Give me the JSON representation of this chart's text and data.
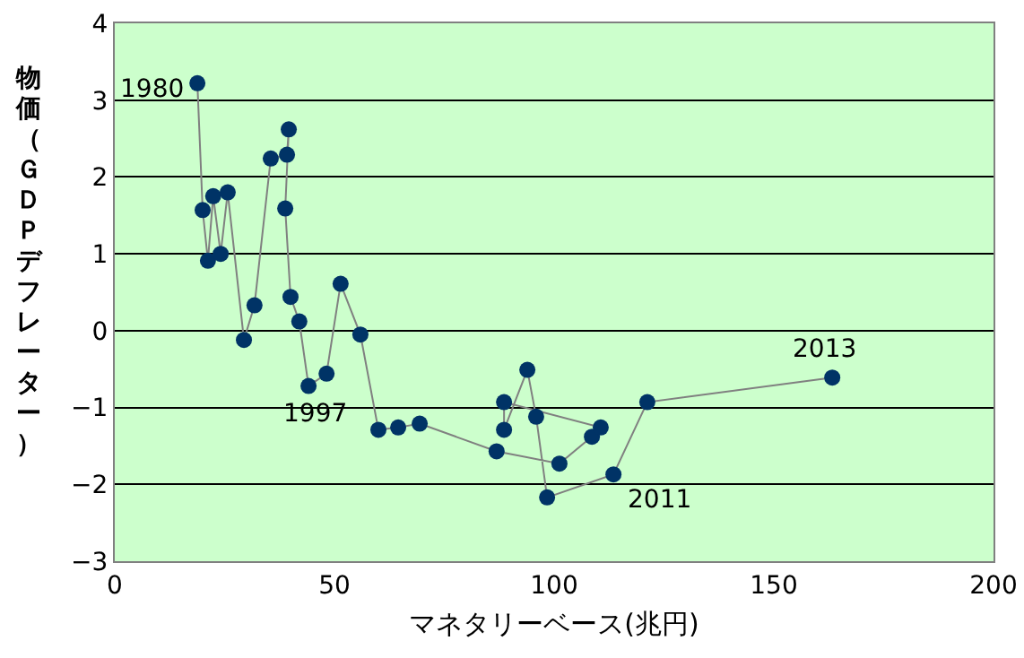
{
  "chart_data": {
    "type": "line",
    "xlabel": "マネタリーベース(兆円)",
    "ylabel": "物価（ＧＤＰデフレーター）",
    "x": [
      18.8,
      20.0,
      21.2,
      22.4,
      24.1,
      25.7,
      29.4,
      31.8,
      35.5,
      39.2,
      39.6,
      38.8,
      40.0,
      42.0,
      44.1,
      48.2,
      51.4,
      55.9,
      60.0,
      64.5,
      69.4,
      86.9,
      101.2,
      108.6,
      110.6,
      88.6,
      88.6,
      93.9,
      95.9,
      98.4,
      113.5,
      121.2,
      163.3
    ],
    "series": [
      {
        "color": "#003366",
        "values": [
          3.22,
          1.57,
          0.91,
          1.75,
          1.0,
          1.8,
          -0.12,
          0.33,
          2.24,
          2.29,
          2.62,
          1.59,
          0.44,
          0.12,
          -0.72,
          -0.56,
          0.61,
          -0.05,
          -1.29,
          -1.26,
          -1.21,
          -1.57,
          -1.73,
          -1.38,
          -1.26,
          -0.93,
          -1.29,
          -0.51,
          -1.12,
          -2.17,
          -1.87,
          -0.93,
          -0.61
        ]
      }
    ],
    "marker": "circle",
    "xlim": [
      0,
      200
    ],
    "xticks": [
      0,
      50,
      100,
      150,
      200
    ],
    "ylim": [
      -3,
      4
    ],
    "yticks": [
      -3,
      -2,
      -1,
      0,
      1,
      2,
      3,
      4
    ],
    "grid": "y",
    "annotations": [
      {
        "text": "1980",
        "x": 18.8,
        "y": 3.22
      },
      {
        "text": "1997",
        "x": 44.1,
        "y": -0.72
      },
      {
        "text": "2011",
        "x": 113.5,
        "y": -1.87
      },
      {
        "text": "2013",
        "x": 163.3,
        "y": -0.61
      }
    ]
  }
}
